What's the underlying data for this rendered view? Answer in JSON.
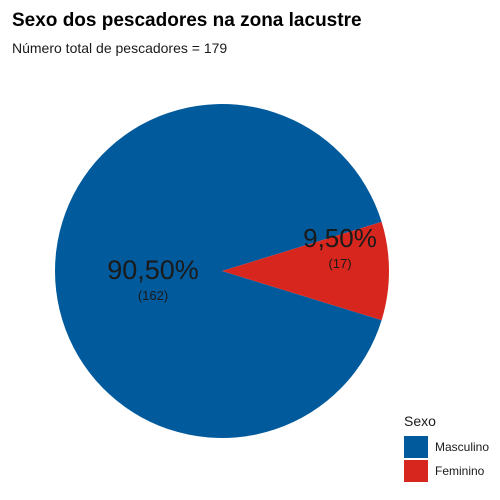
{
  "chart_data": {
    "type": "pie",
    "title": "Sexo dos pescadores na zona lacustre",
    "subtitle": "Número total de pescadores = 179",
    "legend_title": "Sexo",
    "legend_position": "bottom-right",
    "slices": [
      {
        "label": "Masculino",
        "value": 162,
        "percent_label": "90,50%",
        "count_label": "(162)",
        "color": "#005A9C"
      },
      {
        "label": "Feminino",
        "value": 17,
        "percent_label": "9,50%",
        "count_label": "(17)",
        "color": "#D7261E"
      }
    ]
  }
}
